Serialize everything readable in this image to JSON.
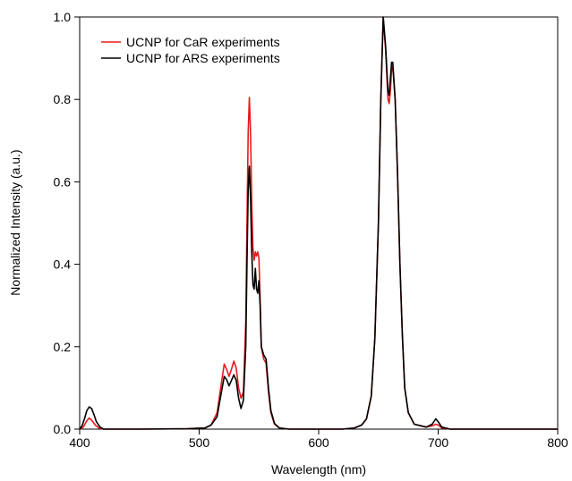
{
  "chart_data": {
    "type": "line",
    "title": "",
    "xlabel": "Wavelength (nm)",
    "ylabel": "Normalized Intensity (a.u.)",
    "xlim": [
      400,
      800
    ],
    "ylim": [
      0,
      1.0
    ],
    "x_ticks": [
      400,
      500,
      600,
      700,
      800
    ],
    "x_tick_labels": [
      "400",
      "500",
      "600",
      "700",
      "800"
    ],
    "y_ticks": [
      0,
      0.2,
      0.4,
      0.6,
      0.8,
      1.0
    ],
    "y_tick_labels": [
      "0.0",
      "0.2",
      "0.4",
      "0.6",
      "0.8",
      "1.0"
    ],
    "grid": false,
    "legend_position": "top-left",
    "series": [
      {
        "name": "UCNP for CaR experiments",
        "color": "#e8191f",
        "points": [
          [
            400,
            0.0
          ],
          [
            403,
            0.005
          ],
          [
            406,
            0.02
          ],
          [
            408,
            0.027
          ],
          [
            410,
            0.022
          ],
          [
            413,
            0.01
          ],
          [
            416,
            0.003
          ],
          [
            420,
            0.0
          ],
          [
            450,
            0.0
          ],
          [
            490,
            0.001
          ],
          [
            505,
            0.003
          ],
          [
            510,
            0.01
          ],
          [
            515,
            0.04
          ],
          [
            518,
            0.1
          ],
          [
            521,
            0.158
          ],
          [
            523,
            0.145
          ],
          [
            525,
            0.128
          ],
          [
            527,
            0.145
          ],
          [
            529,
            0.165
          ],
          [
            531,
            0.148
          ],
          [
            533,
            0.1
          ],
          [
            535,
            0.075
          ],
          [
            537,
            0.09
          ],
          [
            539,
            0.26
          ],
          [
            540,
            0.5
          ],
          [
            541,
            0.72
          ],
          [
            542,
            0.805
          ],
          [
            543,
            0.72
          ],
          [
            544,
            0.55
          ],
          [
            545,
            0.44
          ],
          [
            546,
            0.41
          ],
          [
            547,
            0.43
          ],
          [
            548,
            0.42
          ],
          [
            549,
            0.43
          ],
          [
            550,
            0.415
          ],
          [
            551,
            0.32
          ],
          [
            552,
            0.2
          ],
          [
            554,
            0.17
          ],
          [
            556,
            0.16
          ],
          [
            558,
            0.09
          ],
          [
            560,
            0.04
          ],
          [
            563,
            0.012
          ],
          [
            567,
            0.003
          ],
          [
            575,
            0.0
          ],
          [
            620,
            0.0
          ],
          [
            630,
            0.003
          ],
          [
            636,
            0.01
          ],
          [
            640,
            0.025
          ],
          [
            644,
            0.08
          ],
          [
            647,
            0.22
          ],
          [
            650,
            0.5
          ],
          [
            652,
            0.8
          ],
          [
            654,
            1.0
          ],
          [
            656,
            0.92
          ],
          [
            658,
            0.8
          ],
          [
            659,
            0.79
          ],
          [
            660,
            0.82
          ],
          [
            661,
            0.87
          ],
          [
            662,
            0.88
          ],
          [
            664,
            0.8
          ],
          [
            666,
            0.62
          ],
          [
            668,
            0.4
          ],
          [
            670,
            0.23
          ],
          [
            672,
            0.1
          ],
          [
            675,
            0.04
          ],
          [
            680,
            0.012
          ],
          [
            690,
            0.005
          ],
          [
            695,
            0.008
          ],
          [
            698,
            0.012
          ],
          [
            700,
            0.01
          ],
          [
            703,
            0.003
          ],
          [
            710,
            0.0
          ],
          [
            800,
            0.0
          ]
        ]
      },
      {
        "name": "UCNP for ARS experiments",
        "color": "#000000",
        "points": [
          [
            400,
            0.0
          ],
          [
            402,
            0.008
          ],
          [
            404,
            0.025
          ],
          [
            406,
            0.045
          ],
          [
            408,
            0.054
          ],
          [
            410,
            0.05
          ],
          [
            412,
            0.035
          ],
          [
            414,
            0.018
          ],
          [
            417,
            0.005
          ],
          [
            420,
            0.0
          ],
          [
            450,
            0.0
          ],
          [
            490,
            0.001
          ],
          [
            505,
            0.003
          ],
          [
            510,
            0.01
          ],
          [
            515,
            0.03
          ],
          [
            518,
            0.08
          ],
          [
            521,
            0.128
          ],
          [
            523,
            0.12
          ],
          [
            525,
            0.105
          ],
          [
            527,
            0.118
          ],
          [
            529,
            0.132
          ],
          [
            531,
            0.118
          ],
          [
            533,
            0.075
          ],
          [
            535,
            0.05
          ],
          [
            537,
            0.07
          ],
          [
            539,
            0.2
          ],
          [
            540,
            0.4
          ],
          [
            541,
            0.58
          ],
          [
            542,
            0.638
          ],
          [
            543,
            0.56
          ],
          [
            544,
            0.43
          ],
          [
            545,
            0.35
          ],
          [
            546,
            0.34
          ],
          [
            547,
            0.39
          ],
          [
            548,
            0.34
          ],
          [
            549,
            0.33
          ],
          [
            550,
            0.36
          ],
          [
            551,
            0.3
          ],
          [
            552,
            0.2
          ],
          [
            554,
            0.18
          ],
          [
            556,
            0.17
          ],
          [
            558,
            0.1
          ],
          [
            560,
            0.045
          ],
          [
            563,
            0.014
          ],
          [
            567,
            0.003
          ],
          [
            575,
            0.0
          ],
          [
            620,
            0.0
          ],
          [
            630,
            0.003
          ],
          [
            636,
            0.01
          ],
          [
            640,
            0.025
          ],
          [
            644,
            0.08
          ],
          [
            647,
            0.22
          ],
          [
            650,
            0.5
          ],
          [
            652,
            0.8
          ],
          [
            654,
            1.0
          ],
          [
            656,
            0.93
          ],
          [
            658,
            0.82
          ],
          [
            659,
            0.81
          ],
          [
            660,
            0.85
          ],
          [
            661,
            0.89
          ],
          [
            662,
            0.89
          ],
          [
            664,
            0.8
          ],
          [
            666,
            0.62
          ],
          [
            668,
            0.4
          ],
          [
            670,
            0.23
          ],
          [
            672,
            0.1
          ],
          [
            675,
            0.04
          ],
          [
            680,
            0.012
          ],
          [
            690,
            0.005
          ],
          [
            695,
            0.012
          ],
          [
            698,
            0.025
          ],
          [
            700,
            0.018
          ],
          [
            703,
            0.005
          ],
          [
            710,
            0.0
          ],
          [
            800,
            0.0
          ]
        ]
      }
    ]
  }
}
